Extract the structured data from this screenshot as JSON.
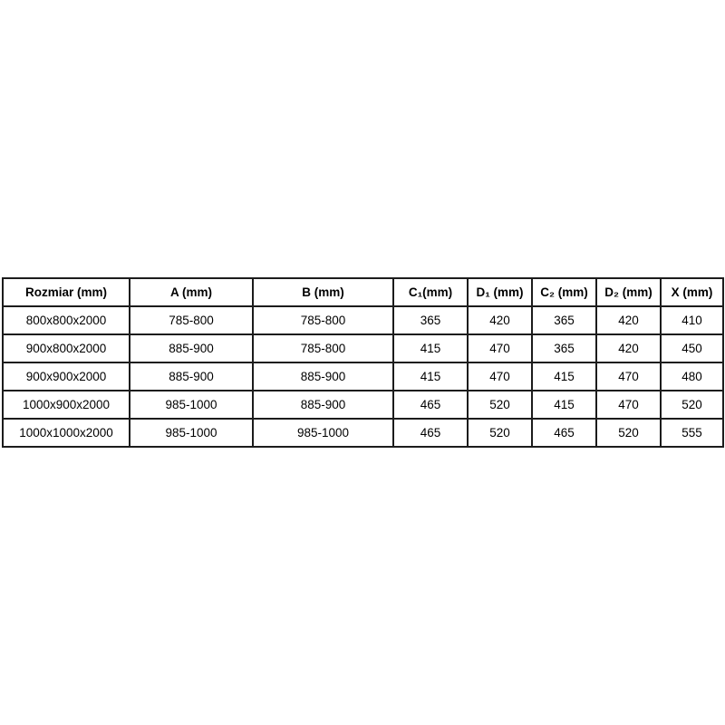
{
  "table": {
    "border_color": "#1c1c1c",
    "background_color": "#ffffff",
    "text_color": "#000000",
    "columns": [
      "Rozmiar (mm)",
      "A (mm)",
      "B (mm)",
      "C₁(mm)",
      "D₁ (mm)",
      "C₂ (mm)",
      "D₂ (mm)",
      "X (mm)"
    ],
    "rows": [
      [
        "800x800x2000",
        "785-800",
        "785-800",
        "365",
        "420",
        "365",
        "420",
        "410"
      ],
      [
        "900x800x2000",
        "885-900",
        "785-800",
        "415",
        "470",
        "365",
        "420",
        "450"
      ],
      [
        "900x900x2000",
        "885-900",
        "885-900",
        "415",
        "470",
        "415",
        "470",
        "480"
      ],
      [
        "1000x900x2000",
        "985-1000",
        "885-900",
        "465",
        "520",
        "415",
        "470",
        "520"
      ],
      [
        "1000x1000x2000",
        "985-1000",
        "985-1000",
        "465",
        "520",
        "465",
        "520",
        "555"
      ]
    ]
  }
}
